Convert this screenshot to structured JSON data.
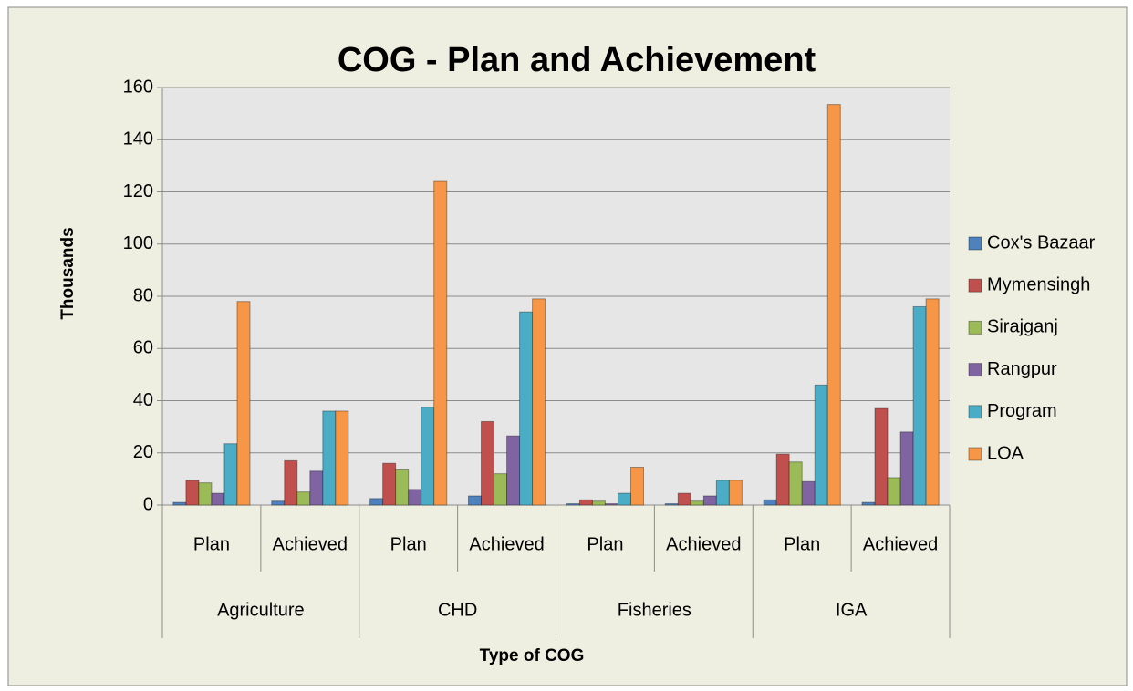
{
  "chart_data": {
    "type": "bar",
    "title": "COG - Plan and Achievement",
    "x_label": "Type of COG",
    "y_label": "Thousands",
    "categories": [
      "Plan",
      "Achieved",
      "Plan",
      "Achieved",
      "Plan",
      "Achieved",
      "Plan",
      "Achieved"
    ],
    "groups": [
      "Agriculture",
      "CHD",
      "Fisheries",
      "IGA"
    ],
    "series": [
      {
        "name": "Cox's Bazaar",
        "color": "#4f81bd",
        "values": [
          1,
          1.5,
          2.5,
          3.5,
          0.5,
          0.5,
          2,
          1
        ]
      },
      {
        "name": "Mymensingh",
        "color": "#c0504d",
        "values": [
          9.5,
          17,
          16,
          32,
          2,
          4.5,
          19.5,
          37
        ]
      },
      {
        "name": "Sirajganj",
        "color": "#9bbb59",
        "values": [
          8.5,
          5,
          13.5,
          12,
          1.5,
          1.5,
          16.5,
          10.5
        ]
      },
      {
        "name": "Rangpur",
        "color": "#8064a2",
        "values": [
          4.5,
          13,
          6,
          26.5,
          0.5,
          3.5,
          9,
          28
        ]
      },
      {
        "name": "Program",
        "color": "#4bacc6",
        "values": [
          23.5,
          36,
          37.5,
          74,
          4.5,
          9.5,
          46,
          76
        ]
      },
      {
        "name": "LOA",
        "color": "#f79646",
        "values": [
          78,
          36,
          124,
          79,
          14.5,
          9.5,
          153.5,
          79
        ]
      }
    ],
    "ylim": [
      0,
      160
    ],
    "yticks": [
      0,
      20,
      40,
      60,
      80,
      100,
      120,
      140,
      160
    ],
    "grid": true,
    "legend": "right"
  }
}
